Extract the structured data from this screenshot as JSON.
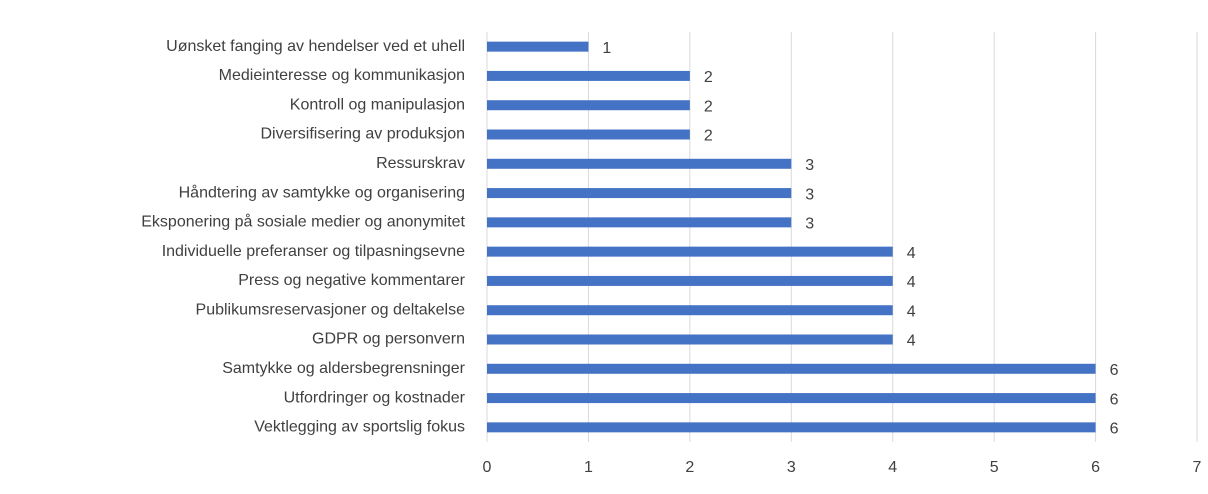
{
  "chart_data": {
    "type": "bar",
    "orientation": "horizontal",
    "categories": [
      "Uønsket fanging av hendelser ved et uhell",
      "Medieinteresse og kommunikasjon",
      "Kontroll og manipulasjon",
      "Diversifisering av produksjon",
      "Ressurskrav",
      "Håndtering av samtykke og organisering",
      "Eksponering på sosiale medier og anonymitet",
      "Individuelle preferanser og tilpasningsevne",
      "Press og negative kommentarer",
      "Publikumsreservasjoner og deltakelse",
      "GDPR og personvern",
      "Samtykke og aldersbegrensninger",
      "Utfordringer og kostnader",
      "Vektlegging av sportslig fokus"
    ],
    "values": [
      1,
      2,
      2,
      2,
      3,
      3,
      3,
      4,
      4,
      4,
      4,
      6,
      6,
      6
    ],
    "color": "#4472c4",
    "xlim": [
      0,
      7
    ],
    "xticks": [
      0,
      1,
      2,
      3,
      4,
      5,
      6,
      7
    ],
    "grid": true
  }
}
